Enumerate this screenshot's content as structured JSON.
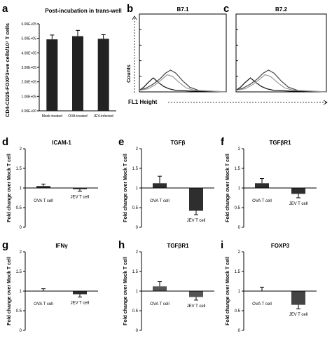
{
  "chart_data": [
    {
      "panel": "a",
      "type": "bar",
      "title": "Post-incubation in trans-well",
      "ylabel": "CD4-CD25-FOXP3+ve cells/10⁷ T cells",
      "ylim": [
        0,
        600000
      ],
      "yticks": [
        "0.00E+00",
        "1.00E+05",
        "2.00E+05",
        "3.00E+05",
        "4.00E+05",
        "5.00E+05",
        "6.00E+05"
      ],
      "categories": [
        "Mock-treated",
        "OVA-treated",
        "JEV-infected"
      ],
      "values": [
        493000,
        515000,
        497000
      ],
      "errors": [
        30000,
        40000,
        28000
      ]
    },
    {
      "panel": "b",
      "type": "line",
      "title": "B7.1",
      "ylabel": "Counts",
      "xlabel": "FL1 Height"
    },
    {
      "panel": "c",
      "type": "line",
      "title": "B7.2"
    },
    {
      "panel": "d",
      "type": "bar",
      "title": "ICAM-1",
      "ylabel": "Fold change over Mock T cell",
      "ylim": [
        0,
        2
      ],
      "yticks": [
        "0",
        "0.5",
        "1",
        "1.5",
        "2"
      ],
      "categories": [
        "OVA T cell",
        "JEV T cell"
      ],
      "values": [
        1.05,
        0.97
      ],
      "errors": [
        0.05,
        0.05
      ],
      "colors": [
        "#2e2e2e",
        "#2e2e2e"
      ]
    },
    {
      "panel": "e",
      "type": "bar",
      "title": "TGFβ",
      "ylabel": "Fold change over Mock T cell",
      "ylim": [
        0,
        2
      ],
      "yticks": [
        "0",
        "0.5",
        "1",
        "1.5",
        "2"
      ],
      "categories": [
        "OVA T cell",
        "JEV T cell"
      ],
      "values": [
        1.12,
        0.42
      ],
      "errors": [
        0.18,
        0.1
      ],
      "colors": [
        "#2e2e2e",
        "#2e2e2e"
      ]
    },
    {
      "panel": "f",
      "type": "bar",
      "title": "TGFβR1",
      "ylabel": "Fold change over Mock T cell",
      "ylim": [
        0,
        2
      ],
      "yticks": [
        "0",
        "0.5",
        "1",
        "1.5",
        "2"
      ],
      "categories": [
        "OVA T cell",
        "JEV T cell"
      ],
      "values": [
        1.12,
        0.85
      ],
      "errors": [
        0.12,
        0.1
      ],
      "colors": [
        "#2e2e2e",
        "#2e2e2e"
      ]
    },
    {
      "panel": "g",
      "type": "bar",
      "title": "IFNγ",
      "ylabel": "Fold change over Mock T cell",
      "ylim": [
        0,
        2
      ],
      "yticks": [
        "0",
        "0.5",
        "1",
        "1.5",
        "2"
      ],
      "categories": [
        "OVA T cell",
        "JEV T cell"
      ],
      "values": [
        1.0,
        0.92
      ],
      "errors": [
        0.06,
        0.07
      ],
      "colors": [
        "#2e2e2e",
        "#2e2e2e"
      ]
    },
    {
      "panel": "h",
      "type": "bar",
      "title": "TGFβR1",
      "ylabel": "Fold change over Mock T cell",
      "ylim": [
        0,
        2
      ],
      "yticks": [
        "0",
        "0.5",
        "1",
        "1.5",
        "2"
      ],
      "categories": [
        "OVA T cell",
        "JEV T cell"
      ],
      "values": [
        1.12,
        0.85
      ],
      "errors": [
        0.12,
        0.08
      ],
      "colors": [
        "#555555",
        "#555555"
      ]
    },
    {
      "panel": "i",
      "type": "bar",
      "title": "FOXP3",
      "ylabel": "Fold change over Mock T cell",
      "ylim": [
        0,
        2
      ],
      "yticks": [
        "0",
        "0.5",
        "1",
        "1.5",
        "2"
      ],
      "categories": [
        "OVA T cell",
        "JEV T cell"
      ],
      "values": [
        1.0,
        0.65
      ],
      "errors": [
        0.1,
        0.1
      ],
      "colors": [
        "#444444",
        "#444444"
      ]
    }
  ]
}
